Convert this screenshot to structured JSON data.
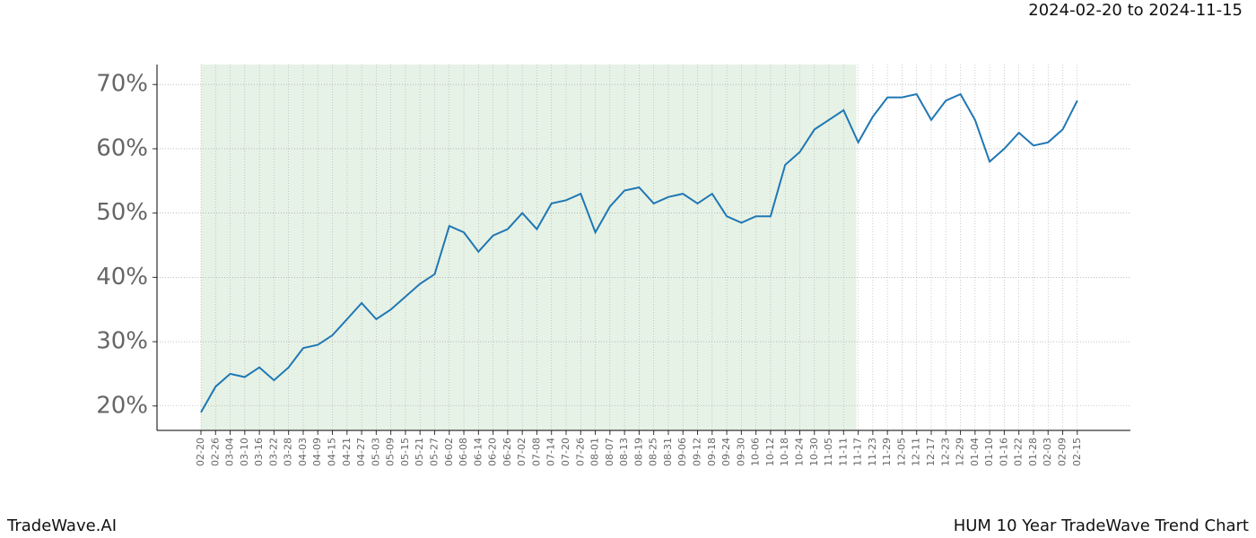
{
  "chart_data": {
    "type": "line",
    "subtitle": "2024-02-20 to 2024-11-15",
    "brand": "TradeWave.AI",
    "title": "HUM 10 Year TradeWave Trend Chart",
    "categories": [
      "02-20",
      "02-26",
      "03-04",
      "03-10",
      "03-16",
      "03-22",
      "03-28",
      "04-03",
      "04-09",
      "04-15",
      "04-21",
      "04-27",
      "05-03",
      "05-09",
      "05-15",
      "05-21",
      "05-27",
      "06-02",
      "06-08",
      "06-14",
      "06-20",
      "06-26",
      "07-02",
      "07-08",
      "07-14",
      "07-20",
      "07-26",
      "08-01",
      "08-07",
      "08-13",
      "08-19",
      "08-25",
      "08-31",
      "09-06",
      "09-12",
      "09-18",
      "09-24",
      "09-30",
      "10-06",
      "10-12",
      "10-18",
      "10-24",
      "10-30",
      "11-05",
      "11-11",
      "11-17",
      "11-23",
      "11-29",
      "12-05",
      "12-11",
      "12-17",
      "12-23",
      "12-29",
      "01-04",
      "01-10",
      "01-16",
      "01-22",
      "01-28",
      "02-03",
      "02-09",
      "02-15"
    ],
    "series": [
      {
        "color": "#1f77b4",
        "values": [
          19,
          23,
          25,
          24.5,
          26,
          24,
          26,
          29,
          29.5,
          31,
          33.5,
          36,
          33.5,
          35,
          37,
          39,
          40.5,
          48,
          47,
          44,
          46.5,
          47.5,
          50,
          47.5,
          51.5,
          52,
          53,
          47,
          51,
          53.5,
          54,
          51.5,
          52.5,
          53,
          51.5,
          53,
          49.5,
          48.5,
          49.5,
          49.5,
          57.5,
          59.5,
          63,
          64.5,
          66,
          61,
          65,
          68,
          68,
          68.5,
          64.5,
          67.5,
          68.5,
          64.5,
          58,
          60,
          62.5,
          60.5,
          61,
          63,
          67.5
        ]
      }
    ],
    "highlight": {
      "from": "02-20",
      "to": "11-17",
      "color": "#e6f2e6"
    },
    "ylim": [
      16.2,
      73.1
    ],
    "yticks": [
      {
        "value": 20,
        "label": "20%"
      },
      {
        "value": 30,
        "label": "30%"
      },
      {
        "value": 40,
        "label": "40%"
      },
      {
        "value": 50,
        "label": "50%"
      },
      {
        "value": 60,
        "label": "60%"
      },
      {
        "value": 70,
        "label": "70%"
      }
    ],
    "grid": true
  }
}
